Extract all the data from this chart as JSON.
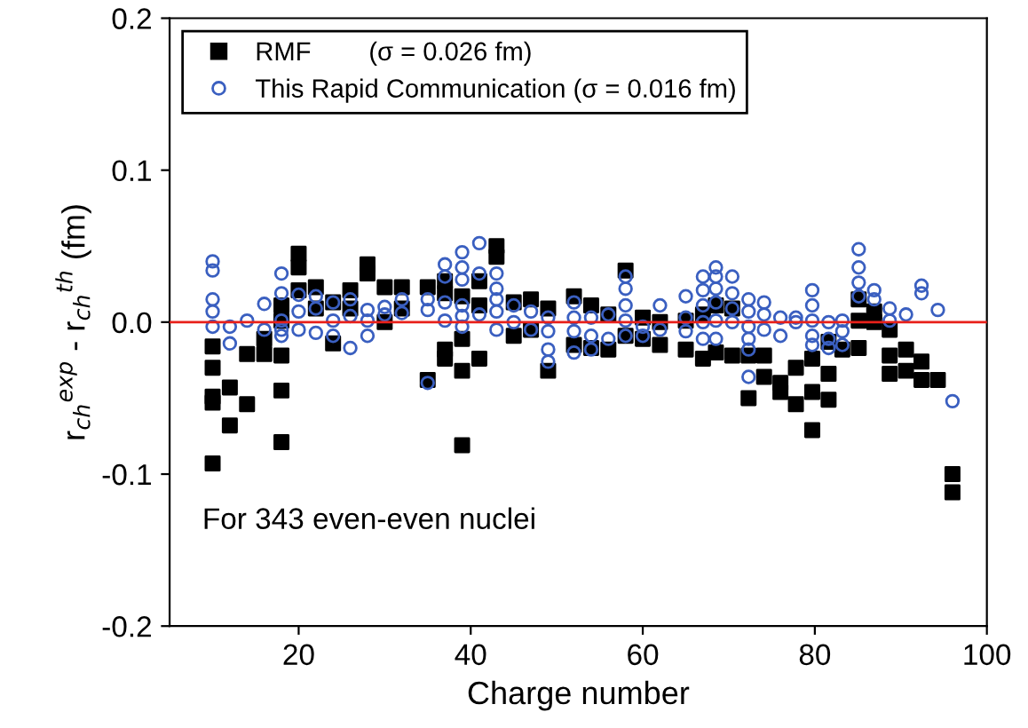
{
  "chart_data": {
    "type": "scatter",
    "xlabel": "Charge number",
    "ylabel": "r$_{ch}$$^{exp}$ - r$_{ch}$$^{th}$ (fm)",
    "xlim": [
      5,
      100
    ],
    "xticks": [
      20,
      40,
      60,
      80,
      100
    ],
    "ylim": [
      -0.2,
      0.2
    ],
    "yticks": [
      {
        "value": -0.2,
        "label": "-0.2"
      },
      {
        "value": -0.1,
        "label": "-0.1"
      },
      {
        "value": 0,
        "label": "0.0"
      },
      {
        "value": 0.1,
        "label": "0.1"
      },
      {
        "value": 0.2,
        "label": "0.2"
      }
    ],
    "grid": false,
    "legend": "top left",
    "ref_lines": [
      {
        "axis": "y",
        "value": 0,
        "color": "#e8201a"
      }
    ],
    "annotations": [
      "For 343 even-even nuclei"
    ],
    "series": [
      {
        "name": "RMF        (σ = 0.026 fm)",
        "color": "#000000",
        "marker": "square",
        "x": [
          10,
          10,
          10,
          10,
          10,
          12,
          12,
          14,
          14,
          16,
          16,
          18,
          18,
          18,
          18,
          18,
          20,
          20,
          20,
          22,
          22,
          24,
          24,
          26,
          26,
          28,
          28,
          30,
          30,
          32,
          32,
          35,
          35,
          37,
          37,
          37,
          37,
          39,
          39,
          39,
          39,
          41,
          41,
          41,
          43,
          43,
          45,
          45,
          47,
          47,
          49,
          49,
          52,
          52,
          54,
          54,
          56,
          56,
          58,
          58,
          60,
          60,
          62,
          62,
          65,
          65,
          67,
          67,
          68.5,
          68.5,
          70.4,
          70.4,
          72.3,
          72.3,
          74.1,
          74.1,
          76,
          76,
          77.8,
          77.8,
          79.7,
          79.7,
          79.7,
          81.6,
          81.6,
          81.6,
          83.2,
          85.1,
          85.1,
          85.1,
          86.9,
          86.9,
          88.7,
          88.7,
          88.7,
          90.6,
          90.6,
          92.4,
          92.4,
          94.3,
          96,
          96
        ],
        "values": [
          -0.016,
          -0.03,
          -0.049,
          -0.053,
          -0.093,
          -0.043,
          -0.068,
          -0.021,
          -0.054,
          -0.011,
          -0.021,
          0.011,
          0.001,
          -0.022,
          -0.045,
          -0.079,
          0.045,
          0.036,
          0.021,
          0.023,
          0.009,
          0.013,
          -0.014,
          0.021,
          0.009,
          0.038,
          0.032,
          0.023,
          0.0,
          0.023,
          0.009,
          0.023,
          -0.038,
          0.027,
          0.019,
          -0.018,
          -0.024,
          0.017,
          -0.011,
          -0.032,
          -0.081,
          0.027,
          0.011,
          -0.024,
          0.05,
          0.043,
          0.013,
          -0.009,
          0.015,
          -0.005,
          0.009,
          -0.032,
          0.017,
          -0.015,
          0.011,
          -0.017,
          0.005,
          -0.018,
          0.034,
          -0.009,
          0.003,
          -0.011,
          0.0,
          -0.015,
          0.001,
          -0.018,
          0.005,
          -0.024,
          0.011,
          -0.02,
          0.009,
          -0.022,
          -0.022,
          -0.05,
          -0.022,
          -0.036,
          -0.04,
          -0.046,
          -0.03,
          -0.054,
          -0.024,
          -0.046,
          -0.071,
          -0.013,
          -0.034,
          -0.051,
          -0.018,
          0.015,
          0.001,
          -0.017,
          0.007,
          0.0,
          -0.005,
          -0.022,
          -0.034,
          -0.018,
          -0.032,
          -0.026,
          -0.038,
          -0.038,
          -0.1,
          -0.112
        ]
      },
      {
        "name": "This Rapid Communication (σ = 0.016 fm)",
        "color": "#3a5fc0",
        "marker": "circle",
        "x": [
          10,
          10,
          10,
          10,
          10,
          12,
          12,
          14,
          16,
          16,
          18,
          18,
          18,
          18,
          18,
          20,
          20,
          20,
          22,
          22,
          22,
          24,
          24,
          24,
          26,
          26,
          26,
          28,
          28,
          28,
          30,
          30,
          32,
          32,
          35,
          35,
          35,
          37,
          37,
          37,
          37,
          39,
          39,
          39,
          39,
          39,
          39,
          41,
          41,
          41,
          43,
          43,
          43,
          43,
          43,
          45,
          45,
          47,
          47,
          49,
          49,
          49,
          49,
          52,
          52,
          52,
          52,
          54,
          54,
          54,
          56,
          56,
          58,
          58,
          58,
          58,
          58,
          60,
          60,
          62,
          62,
          65,
          65,
          65,
          67,
          67,
          67,
          67,
          67,
          68.5,
          68.5,
          68.5,
          68.5,
          68.5,
          68.5,
          70.4,
          70.4,
          70.4,
          70.4,
          72.3,
          72.3,
          72.3,
          72.3,
          72.3,
          72.3,
          74.1,
          74.1,
          74.1,
          76,
          76,
          77.8,
          77.8,
          79.7,
          79.7,
          79.7,
          79.7,
          79.7,
          81.6,
          81.6,
          81.6,
          83.2,
          83.2,
          83.2,
          85.1,
          85.1,
          85.1,
          85.1,
          86.9,
          86.9,
          88.7,
          88.7,
          90.6,
          92.4,
          92.4,
          94.3,
          96
        ],
        "values": [
          0.04,
          0.034,
          0.015,
          0.007,
          -0.003,
          -0.003,
          -0.014,
          0.001,
          0.012,
          -0.005,
          0.032,
          0.019,
          0.001,
          -0.005,
          -0.009,
          0.018,
          0.007,
          -0.005,
          0.017,
          0.009,
          -0.007,
          0.013,
          0.001,
          -0.009,
          0.015,
          0.004,
          -0.017,
          0.008,
          0.001,
          -0.009,
          0.01,
          0.005,
          0.015,
          0.006,
          0.015,
          0.008,
          -0.04,
          0.038,
          0.03,
          0.013,
          0.001,
          0.046,
          0.036,
          0.028,
          0.011,
          0.004,
          -0.003,
          0.052,
          0.032,
          0.005,
          0.032,
          0.022,
          0.015,
          0.007,
          -0.005,
          0.011,
          0.0,
          0.007,
          -0.005,
          0.003,
          -0.006,
          -0.018,
          -0.026,
          0.013,
          0.003,
          -0.006,
          -0.02,
          0.003,
          -0.009,
          -0.018,
          0.005,
          -0.011,
          0.03,
          0.022,
          0.011,
          0.001,
          -0.009,
          -0.003,
          -0.009,
          0.011,
          -0.005,
          0.017,
          0.003,
          -0.006,
          0.03,
          0.021,
          0.011,
          0.0,
          -0.011,
          0.036,
          0.03,
          0.022,
          0.013,
          0.001,
          -0.011,
          0.03,
          0.019,
          0.009,
          0.0,
          0.015,
          0.007,
          -0.003,
          -0.011,
          -0.018,
          -0.036,
          0.013,
          0.005,
          -0.005,
          0.003,
          -0.009,
          0.003,
          0.0,
          0.021,
          0.011,
          0.001,
          -0.009,
          -0.015,
          0.0,
          -0.011,
          -0.017,
          0.001,
          -0.006,
          -0.015,
          0.048,
          0.036,
          0.026,
          0.017,
          0.021,
          0.015,
          0.009,
          0.001,
          0.005,
          0.024,
          0.019,
          0.008,
          -0.052
        ]
      }
    ]
  }
}
